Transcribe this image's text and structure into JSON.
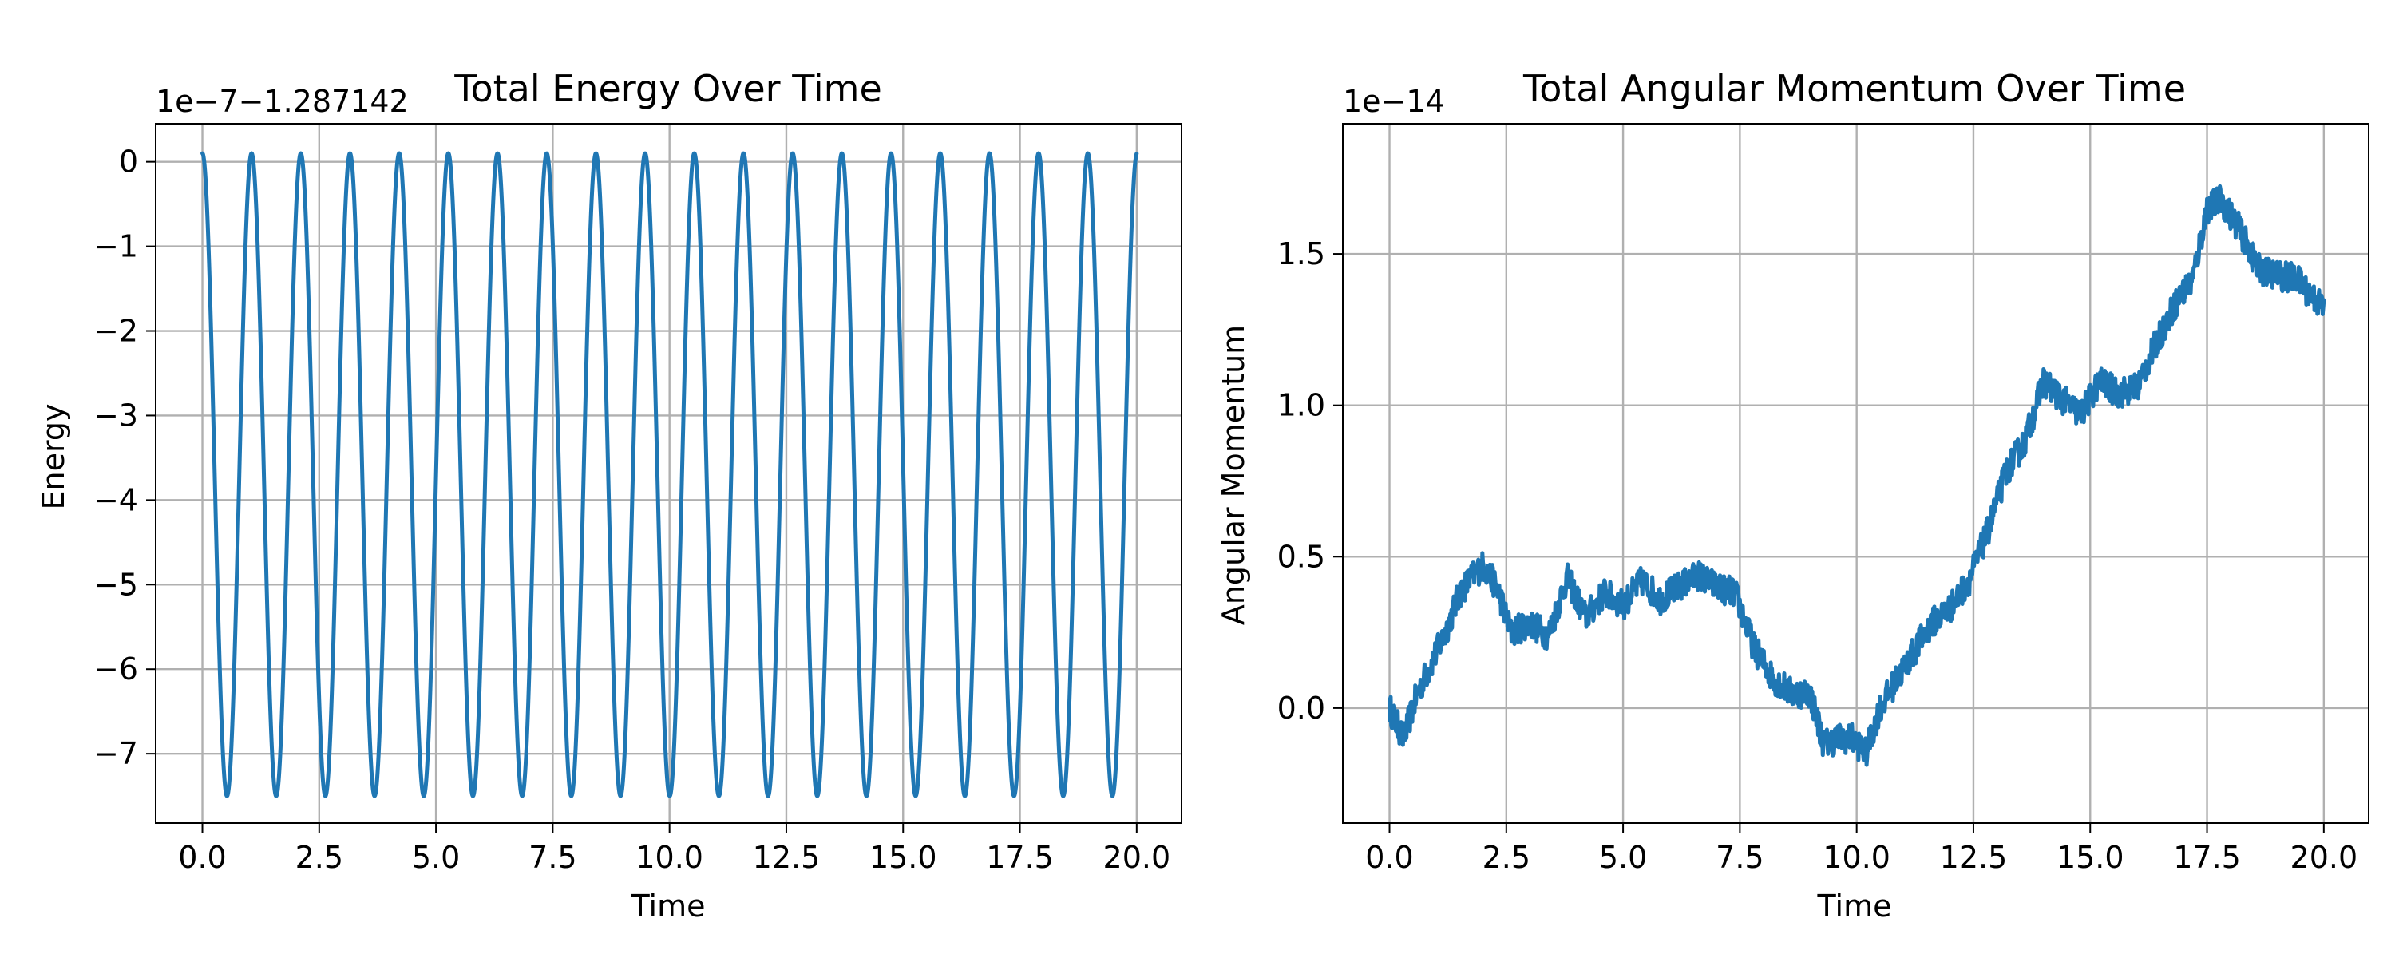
{
  "colors": {
    "series": "#1f77b4",
    "grid": "#b0b0b0"
  },
  "chart_data": [
    {
      "type": "line",
      "title": "Total Energy Over Time",
      "xlabel": "Time",
      "ylabel": "Energy",
      "offset_text": "1e−7−1.287142",
      "grid": true,
      "xlim": [
        -1.0,
        20.96
      ],
      "ylim": [
        -7.82,
        0.45
      ],
      "x_ticks": [
        0,
        2.5,
        5,
        7.5,
        10,
        12.5,
        15,
        17.5,
        20
      ],
      "x_tick_labels": [
        "0.0",
        "2.5",
        "5.0",
        "7.5",
        "10.0",
        "12.5",
        "15.0",
        "17.5",
        "20.0"
      ],
      "y_ticks": [
        0,
        -1,
        -2,
        -3,
        -4,
        -5,
        -6,
        -7
      ],
      "y_tick_labels": [
        "0",
        "−1",
        "−2",
        "−3",
        "−4",
        "−5",
        "−6",
        "−7"
      ],
      "series": [
        {
          "signal": "oscillation",
          "period": 1.053,
          "min": -7.5,
          "max": 0.1,
          "x_range": [
            0,
            20
          ]
        }
      ]
    },
    {
      "type": "line",
      "title": "Total Angular Momentum Over Time",
      "xlabel": "Time",
      "ylabel": "Angular Momentum",
      "offset_text": "1e−14",
      "grid": true,
      "xlim": [
        -1.0,
        20.96
      ],
      "ylim": [
        -0.38,
        1.93
      ],
      "x_ticks": [
        0,
        2.5,
        5,
        7.5,
        10,
        12.5,
        15,
        17.5,
        20
      ],
      "x_tick_labels": [
        "0.0",
        "2.5",
        "5.0",
        "7.5",
        "10.0",
        "12.5",
        "15.0",
        "17.5",
        "20.0"
      ],
      "y_ticks": [
        0,
        0.5,
        1.0,
        1.5
      ],
      "y_tick_labels": [
        "0.0",
        "0.5",
        "1.0",
        "1.5"
      ],
      "series": [
        {
          "signal": "drift",
          "x": [
            0,
            0.3,
            0.6,
            0.9,
            1.2,
            1.5,
            1.8,
            2.0,
            2.3,
            2.6,
            3.0,
            3.4,
            3.8,
            4.2,
            4.6,
            5.0,
            5.4,
            5.8,
            6.2,
            6.6,
            7.0,
            7.4,
            7.8,
            8.2,
            8.6,
            9.0,
            9.3,
            9.6,
            9.9,
            10.2,
            10.5,
            10.8,
            11.2,
            11.6,
            12.0,
            12.4,
            12.8,
            13.2,
            13.6,
            14.0,
            14.4,
            14.8,
            15.2,
            15.6,
            16.0,
            16.4,
            16.8,
            17.2,
            17.5,
            17.8,
            18.2,
            18.6,
            19.0,
            19.4,
            19.7,
            20.0
          ],
          "values": [
            0.0,
            -0.1,
            0.05,
            0.15,
            0.25,
            0.38,
            0.44,
            0.47,
            0.4,
            0.25,
            0.28,
            0.24,
            0.43,
            0.3,
            0.38,
            0.34,
            0.42,
            0.36,
            0.4,
            0.44,
            0.4,
            0.38,
            0.2,
            0.1,
            0.05,
            0.05,
            -0.12,
            -0.1,
            -0.1,
            -0.15,
            0.0,
            0.08,
            0.18,
            0.28,
            0.33,
            0.42,
            0.58,
            0.78,
            0.88,
            1.08,
            1.02,
            0.97,
            1.08,
            1.04,
            1.06,
            1.2,
            1.33,
            1.42,
            1.65,
            1.68,
            1.58,
            1.45,
            1.43,
            1.42,
            1.37,
            1.32
          ]
        }
      ]
    }
  ]
}
